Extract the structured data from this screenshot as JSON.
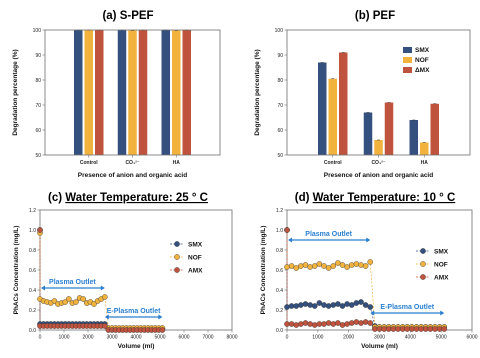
{
  "colors": {
    "smx": "#34507e",
    "nof": "#f2b33e",
    "amx": "#c0533d",
    "arrow": "#2a7fd0",
    "frame": "#6f6f6f"
  },
  "chart_data": [
    {
      "id": "a",
      "type": "bar",
      "title_prefix": "(a) ",
      "title": "S-PEF",
      "xlabel": "Presence of anion and organic acid",
      "ylabel": "Degradation percentage (%)",
      "ylim": [
        50,
        100
      ],
      "yticks": [
        "50",
        "60",
        "70",
        "80",
        "90",
        "100"
      ],
      "categories": [
        "Control",
        "CO₃²⁻",
        "HA"
      ],
      "series": [
        {
          "name": "SMX",
          "key": "smx",
          "values": [
            100,
            100,
            100
          ]
        },
        {
          "name": "NOF",
          "key": "nof",
          "values": [
            100,
            99.8,
            99.8
          ]
        },
        {
          "name": "AMX",
          "key": "amx",
          "values": [
            100,
            100,
            100
          ]
        }
      ]
    },
    {
      "id": "b",
      "type": "bar",
      "title_prefix": "(b) ",
      "title": "PEF",
      "xlabel": "Presence of anion and organic acid",
      "ylabel": "Degradation percentage (%)",
      "ylim": [
        50,
        100
      ],
      "yticks": [
        "50",
        "60",
        "70",
        "80",
        "90",
        "100"
      ],
      "categories": [
        "Control",
        "CO₃²⁻",
        "HA"
      ],
      "series": [
        {
          "name": "SMX",
          "key": "smx",
          "values": [
            87,
            67,
            64
          ]
        },
        {
          "name": "NOF",
          "key": "nof",
          "values": [
            80.5,
            56,
            55
          ]
        },
        {
          "name": "AMX",
          "key": "amx",
          "values": [
            91,
            71,
            70.5
          ]
        }
      ],
      "legend": [
        {
          "label": "SMX",
          "key": "smx"
        },
        {
          "label": "NOF",
          "key": "nof"
        },
        {
          "label": "ΔMX",
          "key": "amx"
        }
      ]
    },
    {
      "id": "c",
      "type": "scatter",
      "title_prefix": "(c) ",
      "title": "Water Temperature: 25 ° C",
      "xlabel": "Volume (ml)",
      "ylabel": "PhACs Concentration (mg/L)",
      "xlim": [
        0,
        8000
      ],
      "ylim": [
        0,
        1.2
      ],
      "xticks": [
        "0",
        "1000",
        "2000",
        "3000",
        "4000",
        "5000",
        "6000",
        "7000",
        "8000"
      ],
      "yticks": [
        "0.0",
        "0.2",
        "0.4",
        "0.6",
        "0.8",
        "1.0",
        "1.2"
      ],
      "plasma_label": "Plasma Outlet",
      "plasma_y": 0.42,
      "eplasma_label": "E-Plasma Outlet",
      "eplasma_y": 0.13,
      "split_x": 2700,
      "series": [
        {
          "name": "SMX",
          "key": "smx",
          "x": [
            0,
            0,
            150,
            300,
            450,
            600,
            750,
            900,
            1050,
            1200,
            1350,
            1500,
            1650,
            1800,
            1950,
            2100,
            2250,
            2400,
            2550,
            2700,
            2850,
            3000,
            3150,
            3300,
            3450,
            3600,
            3750,
            3900,
            4050,
            4200,
            4350,
            4500,
            4650,
            4800,
            4950,
            5100
          ],
          "y": [
            1.0,
            0.06,
            0.06,
            0.06,
            0.06,
            0.06,
            0.06,
            0.06,
            0.06,
            0.06,
            0.06,
            0.06,
            0.06,
            0.06,
            0.06,
            0.06,
            0.06,
            0.06,
            0.06,
            0.06,
            0.01,
            0.01,
            0.01,
            0.01,
            0.01,
            0.01,
            0.01,
            0.01,
            0.01,
            0.01,
            0.01,
            0.01,
            0.01,
            0.01,
            0.01,
            0.01
          ]
        },
        {
          "name": "NOF",
          "key": "nof",
          "x": [
            0,
            0,
            150,
            300,
            450,
            600,
            750,
            900,
            1050,
            1200,
            1350,
            1500,
            1650,
            1800,
            1950,
            2100,
            2250,
            2400,
            2550,
            2700,
            2850,
            3000,
            3150,
            3300,
            3450,
            3600,
            3750,
            3900,
            4050,
            4200,
            4350,
            4500,
            4650,
            4800,
            4950,
            5100
          ],
          "y": [
            0.97,
            0.31,
            0.29,
            0.28,
            0.27,
            0.29,
            0.26,
            0.27,
            0.28,
            0.31,
            0.27,
            0.28,
            0.32,
            0.31,
            0.27,
            0.28,
            0.26,
            0.29,
            0.31,
            0.33,
            0.02,
            0.02,
            0.02,
            0.02,
            0.02,
            0.02,
            0.02,
            0.02,
            0.02,
            0.02,
            0.02,
            0.02,
            0.02,
            0.02,
            0.02,
            0.02
          ]
        },
        {
          "name": "AMX",
          "key": "amx",
          "x": [
            0,
            0,
            150,
            300,
            450,
            600,
            750,
            900,
            1050,
            1200,
            1350,
            1500,
            1650,
            1800,
            1950,
            2100,
            2250,
            2400,
            2550,
            2700,
            2850,
            3000,
            3150,
            3300,
            3450,
            3600,
            3750,
            3900,
            4050,
            4200,
            4350,
            4500,
            4650,
            4800,
            4950,
            5100
          ],
          "y": [
            1.0,
            0.04,
            0.04,
            0.04,
            0.04,
            0.04,
            0.04,
            0.04,
            0.04,
            0.04,
            0.04,
            0.04,
            0.04,
            0.04,
            0.04,
            0.04,
            0.04,
            0.04,
            0.04,
            0.04,
            0.0,
            0.0,
            0.0,
            0.0,
            0.0,
            0.0,
            0.0,
            0.0,
            0.0,
            0.0,
            0.0,
            0.0,
            0.0,
            0.0,
            0.0,
            0.0
          ]
        }
      ]
    },
    {
      "id": "d",
      "type": "scatter",
      "title_prefix": "(d) ",
      "title": "Water Temperature: 10 ° C",
      "xlabel": "Volume (ml)",
      "ylabel": "PhACs Concentration (mg/L)",
      "xlim": [
        0,
        6000
      ],
      "ylim": [
        0,
        1.2
      ],
      "xticks": [
        "0",
        "1000",
        "2000",
        "3000",
        "4000",
        "5000",
        "6000"
      ],
      "yticks": [
        "0.0",
        "0.2",
        "0.4",
        "0.6",
        "0.8",
        "1.0",
        "1.2"
      ],
      "plasma_label": "Plasma Outlet",
      "plasma_y": 0.9,
      "eplasma_label": "E-Plasma Outlet",
      "eplasma_y": 0.17,
      "split_x": 2700,
      "series": [
        {
          "name": "SMX",
          "key": "smx",
          "x": [
            0,
            0,
            150,
            300,
            450,
            600,
            750,
            900,
            1050,
            1200,
            1350,
            1500,
            1650,
            1800,
            1950,
            2100,
            2250,
            2400,
            2550,
            2700,
            2850,
            3000,
            3150,
            3300,
            3450,
            3600,
            3750,
            3900,
            4050,
            4200,
            4350,
            4500,
            4650,
            4800,
            4950,
            5100
          ],
          "y": [
            1.0,
            0.23,
            0.24,
            0.24,
            0.25,
            0.26,
            0.25,
            0.24,
            0.27,
            0.25,
            0.24,
            0.25,
            0.26,
            0.24,
            0.26,
            0.25,
            0.27,
            0.28,
            0.25,
            0.23,
            0.04,
            0.03,
            0.03,
            0.03,
            0.03,
            0.03,
            0.03,
            0.03,
            0.03,
            0.03,
            0.03,
            0.03,
            0.03,
            0.03,
            0.03,
            0.03
          ]
        },
        {
          "name": "NOF",
          "key": "nof",
          "x": [
            0,
            0,
            150,
            300,
            450,
            600,
            750,
            900,
            1050,
            1200,
            1350,
            1500,
            1650,
            1800,
            1950,
            2100,
            2250,
            2400,
            2550,
            2700,
            2850,
            3000,
            3150,
            3300,
            3450,
            3600,
            3750,
            3900,
            4050,
            4200,
            4350,
            4500,
            4650,
            4800,
            4950,
            5100
          ],
          "y": [
            1.0,
            0.63,
            0.64,
            0.62,
            0.64,
            0.65,
            0.63,
            0.64,
            0.66,
            0.64,
            0.62,
            0.64,
            0.67,
            0.65,
            0.63,
            0.65,
            0.66,
            0.65,
            0.64,
            0.68,
            0.03,
            0.03,
            0.03,
            0.03,
            0.03,
            0.03,
            0.03,
            0.03,
            0.03,
            0.03,
            0.03,
            0.03,
            0.03,
            0.03,
            0.03,
            0.03
          ]
        },
        {
          "name": "AMX",
          "key": "amx",
          "x": [
            0,
            0,
            150,
            300,
            450,
            600,
            750,
            900,
            1050,
            1200,
            1350,
            1500,
            1650,
            1800,
            1950,
            2100,
            2250,
            2400,
            2550,
            2700,
            2850,
            3000,
            3150,
            3300,
            3450,
            3600,
            3750,
            3900,
            4050,
            4200,
            4350,
            4500,
            4650,
            4800,
            4950,
            5100
          ],
          "y": [
            1.0,
            0.06,
            0.06,
            0.05,
            0.06,
            0.07,
            0.06,
            0.05,
            0.06,
            0.06,
            0.07,
            0.06,
            0.07,
            0.05,
            0.06,
            0.07,
            0.08,
            0.07,
            0.08,
            0.07,
            0.01,
            0.01,
            0.01,
            0.01,
            0.01,
            0.01,
            0.01,
            0.01,
            0.01,
            0.01,
            0.01,
            0.01,
            0.01,
            0.01,
            0.01,
            0.01
          ]
        }
      ],
      "legend": [
        {
          "label": "SMX",
          "key": "smx"
        },
        {
          "label": "NOF",
          "key": "nof"
        },
        {
          "label": "AMX",
          "key": "amx"
        }
      ]
    }
  ]
}
